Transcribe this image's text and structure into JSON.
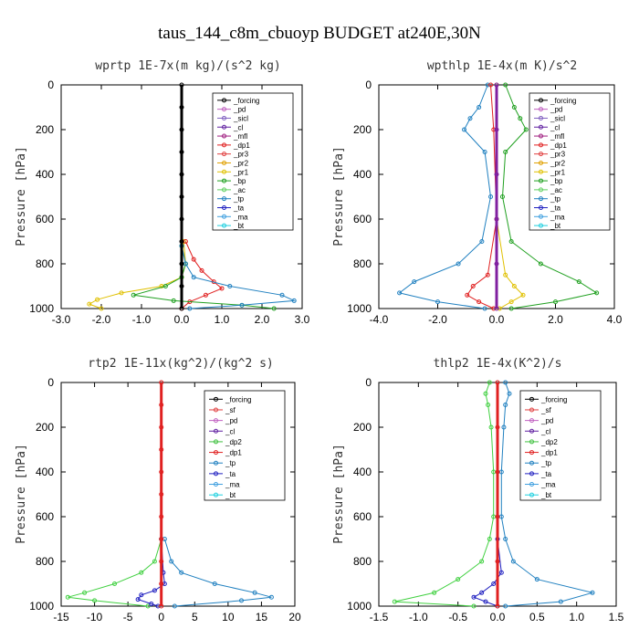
{
  "figure_title": "taus_144_c8m_cbuoyp  BUDGET at240E,30N",
  "chart_data": [
    {
      "type": "line",
      "title": "wprtp  1E-7x(m kg)/(s^2 kg)",
      "ylabel": "Pressure [hPa]",
      "xlim": [
        -3.0,
        3.0
      ],
      "ylim": [
        1000,
        0
      ],
      "xticks": [
        "-3.0",
        "-2.0",
        "-1.0",
        "0.0",
        "1.0",
        "2.0",
        "3.0"
      ],
      "yticks": [
        "0",
        "200",
        "400",
        "600",
        "800",
        "1000"
      ],
      "legend": [
        "_forcing",
        "_pd",
        "_sicl",
        "_cl",
        "_mfl",
        "_dp1",
        "_pr3",
        "_pr2",
        "_pr1",
        "_bp",
        "_ac",
        "_tp",
        "_ta",
        "_ma",
        "_bt"
      ],
      "series": [
        {
          "name": "_pr1",
          "color": "#e0c000",
          "y": [
            700,
            800,
            860,
            900,
            930,
            960,
            980,
            1000
          ],
          "x": [
            0.05,
            0.1,
            0.0,
            -0.5,
            -1.5,
            -2.1,
            -2.3,
            -2.0
          ]
        },
        {
          "name": "_dp1",
          "color": "#e02020",
          "y": [
            700,
            780,
            830,
            880,
            910,
            940,
            970,
            1000
          ],
          "x": [
            0.1,
            0.3,
            0.5,
            0.8,
            1.0,
            0.6,
            0.2,
            0.0
          ]
        },
        {
          "name": "_bp",
          "color": "#20a020",
          "y": [
            720,
            800,
            860,
            900,
            940,
            965,
            985,
            1000
          ],
          "x": [
            0.0,
            0.1,
            0.0,
            -0.4,
            -1.2,
            -0.2,
            1.5,
            2.3
          ]
        },
        {
          "name": "_tp",
          "color": "#2080c0",
          "y": [
            720,
            800,
            860,
            900,
            940,
            965,
            985,
            1000
          ],
          "x": [
            0.0,
            0.1,
            0.3,
            1.2,
            2.5,
            2.8,
            1.5,
            0.2
          ]
        },
        {
          "name": "_forcing",
          "color": "#000000",
          "y": [
            0,
            100,
            200,
            300,
            400,
            500,
            600,
            700,
            800,
            900,
            1000
          ],
          "x": [
            0,
            0,
            0,
            0,
            0,
            0,
            0,
            0,
            0,
            0,
            0
          ]
        }
      ]
    },
    {
      "type": "line",
      "title": "wpthlp  1E-4x(m K)/s^2",
      "ylabel": "Pressure [hPa]",
      "xlim": [
        -4.0,
        4.0
      ],
      "ylim": [
        1000,
        0
      ],
      "xticks": [
        "-4.0",
        "-2.0",
        "0.0",
        "2.0",
        "4.0"
      ],
      "yticks": [
        "0",
        "200",
        "400",
        "600",
        "800",
        "1000"
      ],
      "legend": [
        "_forcing",
        "_pd",
        "_sicl",
        "_cl",
        "_mfl",
        "_dp1",
        "_pr3",
        "_pr2",
        "_pr1",
        "_bp",
        "_ac",
        "_tp",
        "_ta",
        "_ma",
        "_bt"
      ],
      "series": [
        {
          "name": "_bp",
          "color": "#20a020",
          "y": [
            0,
            100,
            150,
            200,
            300,
            500,
            700,
            800,
            880,
            930,
            970,
            1000
          ],
          "x": [
            0.3,
            0.6,
            0.8,
            1.0,
            0.3,
            0.2,
            0.5,
            1.5,
            2.8,
            3.4,
            2.0,
            0.5
          ]
        },
        {
          "name": "_tp",
          "color": "#2080c0",
          "y": [
            0,
            100,
            150,
            200,
            300,
            500,
            700,
            800,
            880,
            930,
            970,
            1000
          ],
          "x": [
            -0.3,
            -0.6,
            -0.9,
            -1.1,
            -0.4,
            -0.2,
            -0.5,
            -1.3,
            -2.8,
            -3.3,
            -2.0,
            -0.4
          ]
        },
        {
          "name": "_dp1",
          "color": "#e02020",
          "y": [
            0,
            200,
            600,
            850,
            900,
            940,
            970,
            1000
          ],
          "x": [
            -0.2,
            -0.1,
            0.0,
            -0.3,
            -0.8,
            -1.0,
            -0.6,
            -0.1
          ]
        },
        {
          "name": "_pr1",
          "color": "#e0c000",
          "y": [
            0,
            600,
            850,
            900,
            940,
            970,
            1000
          ],
          "x": [
            0.0,
            0.0,
            0.3,
            0.6,
            0.9,
            0.5,
            0.1
          ]
        },
        {
          "name": "_forcing",
          "color": "#8020a0",
          "y": [
            0,
            200,
            400,
            600,
            800,
            1000
          ],
          "x": [
            0,
            0,
            0,
            0,
            0,
            0
          ]
        }
      ]
    },
    {
      "type": "line",
      "title": "rtp2  1E-11x(kg^2)/(kg^2 s)",
      "ylabel": "Pressure [hPa]",
      "xlim": [
        -15,
        20
      ],
      "ylim": [
        1000,
        0
      ],
      "xticks": [
        "-15",
        "-10",
        "-5",
        "0",
        "5",
        "10",
        "15",
        "20"
      ],
      "yticks": [
        "0",
        "200",
        "400",
        "600",
        "800",
        "1000"
      ],
      "legend": [
        "_forcing",
        "_sf",
        "_pd",
        "_cl",
        "_dp2",
        "_dp1",
        "_tp",
        "_ta",
        "_ma",
        "_bt"
      ],
      "series": [
        {
          "name": "_dp1",
          "color": "#40d040",
          "y": [
            700,
            800,
            850,
            900,
            940,
            960,
            975,
            1000
          ],
          "x": [
            0.0,
            -1.0,
            -3.0,
            -7.0,
            -11.5,
            -14.0,
            -10.0,
            -2.0
          ]
        },
        {
          "name": "_tp",
          "color": "#2080c0",
          "y": [
            700,
            800,
            850,
            900,
            940,
            960,
            975,
            1000
          ],
          "x": [
            0.5,
            1.5,
            3.0,
            8.0,
            14.0,
            16.5,
            12.0,
            2.0
          ]
        },
        {
          "name": "_ta",
          "color": "#2020c0",
          "y": [
            700,
            850,
            900,
            930,
            950,
            970,
            990,
            1000
          ],
          "x": [
            0.0,
            0.3,
            0.5,
            -1.0,
            -3.0,
            -3.5,
            -1.5,
            -0.5
          ]
        },
        {
          "name": "_forcing",
          "color": "#e02020",
          "y": [
            0,
            100,
            200,
            300,
            400,
            500,
            600,
            700,
            800,
            900,
            1000
          ],
          "x": [
            0,
            0,
            0,
            0,
            0,
            0,
            0,
            0,
            0,
            0,
            0
          ]
        }
      ]
    },
    {
      "type": "line",
      "title": "thlp2  1E-4x(K^2)/s",
      "ylabel": "Pressure [hPa]",
      "xlim": [
        -1.5,
        1.5
      ],
      "ylim": [
        1000,
        0
      ],
      "xticks": [
        "-1.5",
        "-1.0",
        "-0.5",
        "0.0",
        "0.5",
        "1.0",
        "1.5"
      ],
      "yticks": [
        "0",
        "200",
        "400",
        "600",
        "800",
        "1000"
      ],
      "legend": [
        "_forcing",
        "_sf",
        "_pd",
        "_cl",
        "_dp2",
        "_dp1",
        "_tp",
        "_ta",
        "_ma",
        "_bt"
      ],
      "series": [
        {
          "name": "_dp1",
          "color": "#40d040",
          "y": [
            0,
            50,
            100,
            200,
            400,
            600,
            700,
            800,
            880,
            940,
            980,
            1000
          ],
          "x": [
            -0.1,
            -0.15,
            -0.12,
            -0.08,
            -0.05,
            -0.05,
            -0.1,
            -0.2,
            -0.5,
            -0.8,
            -1.3,
            -0.3
          ]
        },
        {
          "name": "_tp",
          "color": "#2080c0",
          "y": [
            0,
            50,
            100,
            200,
            400,
            600,
            700,
            800,
            880,
            940,
            980,
            1000
          ],
          "x": [
            0.1,
            0.15,
            0.1,
            0.08,
            0.05,
            0.05,
            0.1,
            0.2,
            0.5,
            1.2,
            0.8,
            0.1
          ]
        },
        {
          "name": "_ta",
          "color": "#2020c0",
          "y": [
            700,
            850,
            900,
            940,
            960,
            980,
            1000
          ],
          "x": [
            0.0,
            0.05,
            -0.05,
            -0.2,
            -0.3,
            -0.15,
            0.0
          ]
        },
        {
          "name": "_forcing",
          "color": "#e02020",
          "y": [
            0,
            200,
            400,
            600,
            800,
            1000
          ],
          "x": [
            0,
            0,
            0,
            0,
            0,
            0
          ]
        }
      ]
    }
  ]
}
